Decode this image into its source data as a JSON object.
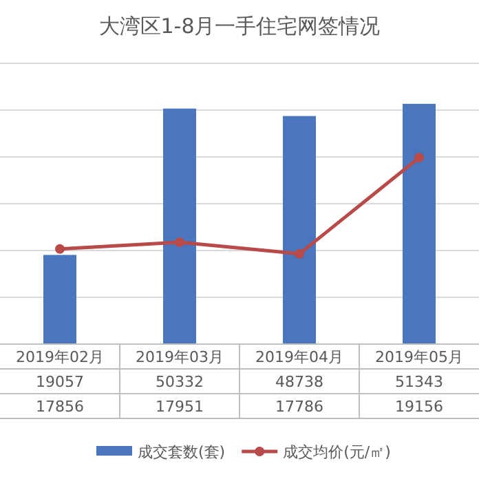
{
  "chart_data": {
    "type": "bar",
    "title": "大湾区1-8月一手住宅网签情况",
    "categories": [
      "2019年02月",
      "2019年03月",
      "2019年04月",
      "2019年05月"
    ],
    "series": [
      {
        "name": "成交套数(套)",
        "color": "#4a76be",
        "values": [
          19057,
          50332,
          48738,
          51343
        ]
      },
      {
        "name": "成交均价(元/㎡)",
        "type": "line",
        "axis": "y2",
        "color": "#b84a4a",
        "marker": "circle",
        "line_style": "solid",
        "values": [
          17856,
          17951,
          17786,
          19156
        ]
      }
    ],
    "ylim": [
      0,
      60000
    ],
    "yticks": [
      {
        "value": 0,
        "label": null
      },
      {
        "value": 10000,
        "label": null
      },
      {
        "value": 20000,
        "label": null
      },
      {
        "value": 30000,
        "label": null
      },
      {
        "value": 40000,
        "label": null
      },
      {
        "value": 50000,
        "label": null
      },
      {
        "value": 60000,
        "label": null
      }
    ],
    "y2lim": [
      16500,
      20500
    ],
    "grid": "y",
    "data_labels": true,
    "legend": "bottom"
  }
}
